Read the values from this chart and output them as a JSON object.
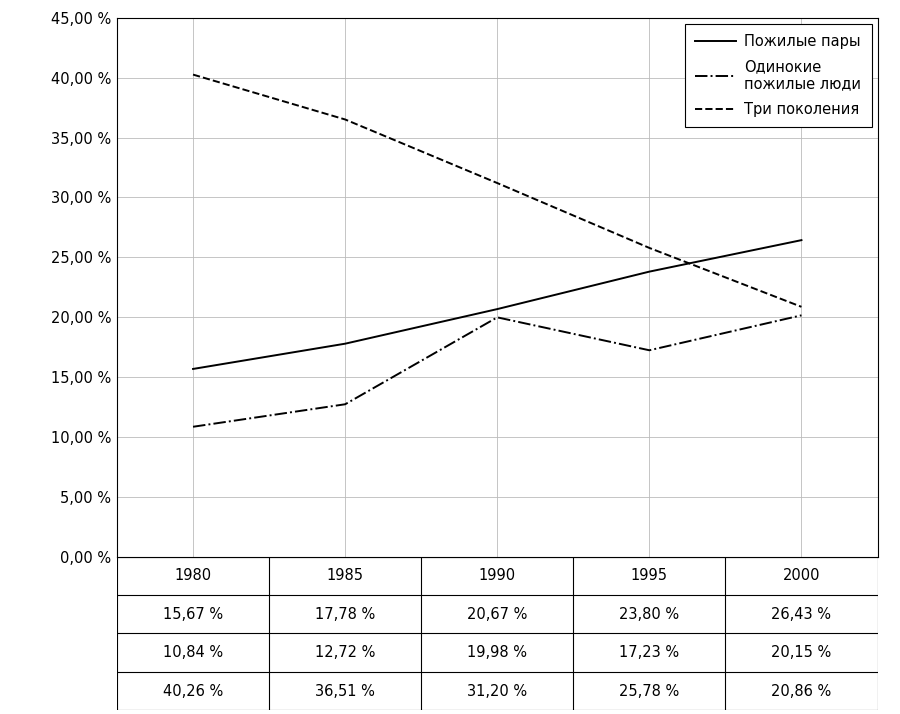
{
  "years": [
    1980,
    1985,
    1990,
    1995,
    2000
  ],
  "series": [
    {
      "label": "Пожилые пары",
      "values": [
        15.67,
        17.78,
        20.67,
        23.8,
        26.43
      ],
      "linestyle": "-",
      "color": "#000000",
      "linewidth": 1.4
    },
    {
      "label": "Одинокие\nпожилые люди",
      "values": [
        10.84,
        12.72,
        19.98,
        17.23,
        20.15
      ],
      "linestyle": "-.",
      "color": "#000000",
      "linewidth": 1.4
    },
    {
      "label": "Три поколения",
      "values": [
        40.26,
        36.51,
        31.2,
        25.78,
        20.86
      ],
      "linestyle": "--",
      "color": "#000000",
      "linewidth": 1.4
    }
  ],
  "table_rows": [
    [
      "15,67 %",
      "17,78 %",
      "20,67 %",
      "23,80 %",
      "26,43 %"
    ],
    [
      "10,84 %",
      "12,72 %",
      "19,98 %",
      "17,23 %",
      "20,15 %"
    ],
    [
      "40,26 %",
      "36,51 %",
      "31,20 %",
      "25,78 %",
      "20,86 %"
    ]
  ],
  "year_labels": [
    "1980",
    "1985",
    "1990",
    "1995",
    "2000"
  ],
  "ylim": [
    0,
    45
  ],
  "yticks": [
    0,
    5,
    10,
    15,
    20,
    25,
    30,
    35,
    40,
    45
  ],
  "ytick_labels": [
    "0,00 %",
    "5,00 %",
    "10,00 %",
    "15,00 %",
    "20,00 %",
    "25,00 %",
    "30,00 %",
    "35,00 %",
    "40,00 %",
    "45,00 %"
  ],
  "background_color": "#ffffff",
  "grid_color": "#bbbbbb",
  "font_size": 10.5,
  "table_font_size": 10.5
}
